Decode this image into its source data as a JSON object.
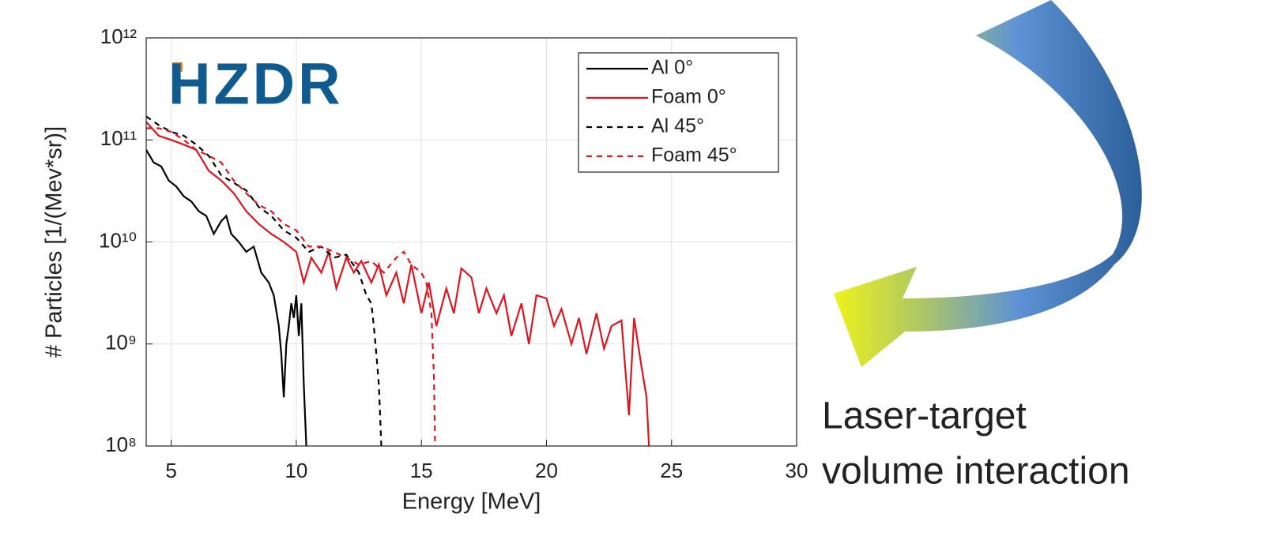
{
  "chart_data": {
    "type": "line",
    "xlabel": "Energy [MeV]",
    "ylabel": "# Particles [1/(Mev*sr)]",
    "logo": "HZDR",
    "annotation": [
      "Laser-target",
      "volume interaction"
    ],
    "xlim": [
      4,
      30
    ],
    "xticks": [
      5,
      10,
      15,
      20,
      25,
      30
    ],
    "ylim": [
      100000000.0,
      1000000000000.0
    ],
    "log_y": true,
    "grid": true,
    "legend": "upper right",
    "yticks": [
      {
        "value": 100000000.0,
        "label": "10⁸"
      },
      {
        "value": 1000000000.0,
        "label": "10⁹"
      },
      {
        "value": 10000000000.0,
        "label": "10¹⁰"
      },
      {
        "value": 100000000000.0,
        "label": "10¹¹"
      },
      {
        "value": 1000000000000.0,
        "label": "10¹²"
      }
    ],
    "series": [
      {
        "name": "Al 0°",
        "color": "#000000",
        "dash": false,
        "x": [
          4,
          4.3,
          4.6,
          4.9,
          5.2,
          5.5,
          5.8,
          6.1,
          6.4,
          6.7,
          7,
          7.2,
          7.4,
          7.7,
          8,
          8.3,
          8.6,
          8.9,
          9.1,
          9.3,
          9.4,
          9.5,
          9.6,
          9.7,
          9.8,
          9.9,
          10,
          10.1,
          10.2,
          10.3,
          10.4
        ],
        "values": [
          80000000000.0,
          60000000000.0,
          55000000000.0,
          40000000000.0,
          35000000000.0,
          28000000000.0,
          25000000000.0,
          20000000000.0,
          18000000000.0,
          12000000000.0,
          16000000000.0,
          18000000000.0,
          12000000000.0,
          10000000000.0,
          8000000000.0,
          9000000000.0,
          5000000000.0,
          4000000000.0,
          3000000000.0,
          1500000000.0,
          800000000.0,
          300000000.0,
          1000000000.0,
          1500000000.0,
          2500000000.0,
          1800000000.0,
          3000000000.0,
          1200000000.0,
          2500000000.0,
          400000000.0,
          100000000.0
        ]
      },
      {
        "name": "Foam 0°",
        "color": "#e0141e",
        "dash": false,
        "x": [
          4,
          4.5,
          5,
          5.5,
          6,
          6.5,
          7,
          7.5,
          8,
          8.5,
          9,
          9.5,
          10,
          10.3,
          10.6,
          11,
          11.3,
          11.6,
          12,
          12.3,
          12.6,
          13,
          13.3,
          13.6,
          14,
          14.3,
          14.6,
          15,
          15.3,
          15.6,
          16,
          16.3,
          16.6,
          17,
          17.3,
          17.6,
          18,
          18.3,
          18.6,
          19,
          19.3,
          19.6,
          20,
          20.3,
          20.6,
          21,
          21.3,
          21.6,
          22,
          22.3,
          22.6,
          23,
          23.3,
          23.5,
          23.8,
          24,
          24.1
        ],
        "values": [
          150000000000.0,
          110000000000.0,
          100000000000.0,
          90000000000.0,
          80000000000.0,
          50000000000.0,
          40000000000.0,
          30000000000.0,
          20000000000.0,
          15000000000.0,
          12000000000.0,
          10000000000.0,
          8000000000.0,
          4000000000.0,
          7000000000.0,
          5000000000.0,
          8000000000.0,
          3500000000.0,
          7000000000.0,
          5000000000.0,
          6500000000.0,
          4000000000.0,
          6000000000.0,
          3000000000.0,
          5000000000.0,
          2500000000.0,
          6000000000.0,
          2000000000.0,
          4000000000.0,
          1500000000.0,
          3500000000.0,
          2000000000.0,
          5500000000.0,
          4500000000.0,
          2000000000.0,
          3500000000.0,
          2000000000.0,
          3000000000.0,
          1200000000.0,
          2500000000.0,
          1000000000.0,
          3000000000.0,
          2800000000.0,
          1500000000.0,
          2200000000.0,
          1000000000.0,
          1800000000.0,
          800000000.0,
          2000000000.0,
          900000000.0,
          1500000000.0,
          1700000000.0,
          200000000.0,
          1800000000.0,
          600000000.0,
          300000000.0,
          100000000.0
        ]
      },
      {
        "name": "Al 45°",
        "color": "#000000",
        "dash": true,
        "x": [
          4,
          4.5,
          5,
          5.5,
          6,
          6.5,
          7,
          7.5,
          8,
          8.5,
          9,
          9.5,
          10,
          10.5,
          11,
          11.5,
          12,
          12.5,
          12.8,
          13,
          13.1,
          13.2,
          13.3,
          13.4
        ],
        "values": [
          170000000000.0,
          140000000000.0,
          120000000000.0,
          110000000000.0,
          90000000000.0,
          70000000000.0,
          45000000000.0,
          38000000000.0,
          32000000000.0,
          22000000000.0,
          18000000000.0,
          13000000000.0,
          11000000000.0,
          8000000000.0,
          9000000000.0,
          7000000000.0,
          7500000000.0,
          5000000000.0,
          3000000000.0,
          2500000000.0,
          1500000000.0,
          800000000.0,
          400000000.0,
          100000000.0
        ]
      },
      {
        "name": "Foam 45°",
        "color": "#e0141e",
        "dash": true,
        "x": [
          4,
          4.5,
          5,
          5.5,
          6,
          6.5,
          7,
          7.5,
          8,
          8.5,
          9,
          9.5,
          10,
          10.5,
          11,
          11.5,
          12,
          12.5,
          13,
          13.5,
          14,
          14.3,
          14.6,
          15,
          15.2,
          15.4,
          15.5,
          15.55
        ],
        "values": [
          130000000000.0,
          130000000000.0,
          120000000000.0,
          100000000000.0,
          80000000000.0,
          70000000000.0,
          60000000000.0,
          40000000000.0,
          30000000000.0,
          23000000000.0,
          20000000000.0,
          15000000000.0,
          13000000000.0,
          9000000000.0,
          9000000000.0,
          8000000000.0,
          7000000000.0,
          6000000000.0,
          6500000000.0,
          5000000000.0,
          7000000000.0,
          8000000000.0,
          6000000000.0,
          5000000000.0,
          4000000000.0,
          2000000000.0,
          500000000.0,
          100000000.0
        ]
      }
    ]
  }
}
